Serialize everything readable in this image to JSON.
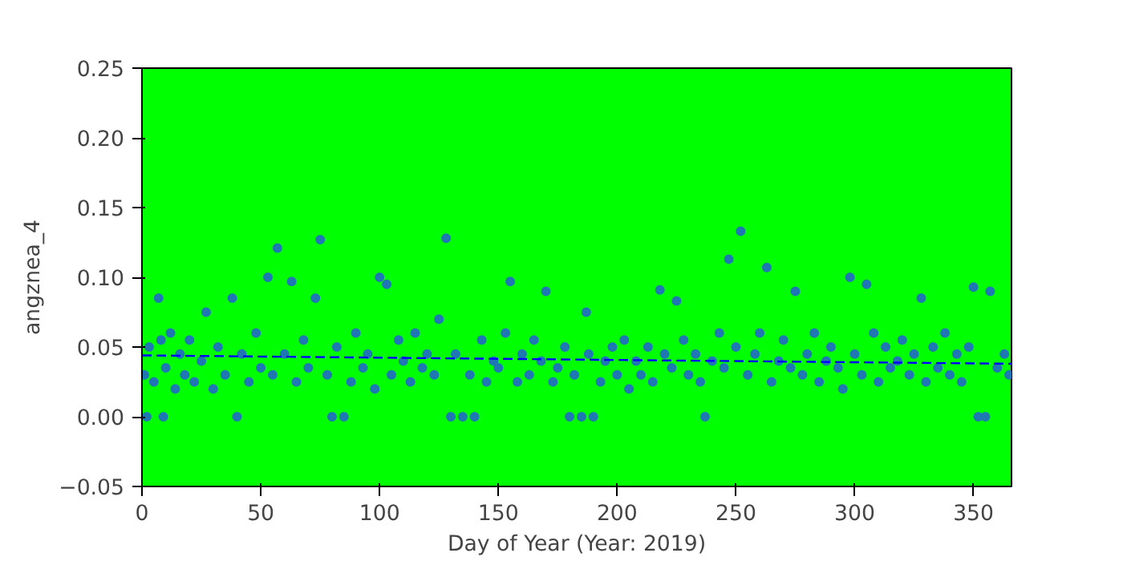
{
  "chart_data": {
    "type": "scatter",
    "xlabel": "Day of Year (Year: 2019)",
    "ylabel": "angznea_4",
    "xlim": [
      0,
      366
    ],
    "ylim": [
      -0.05,
      0.25
    ],
    "xticks": [
      0,
      50,
      100,
      150,
      200,
      250,
      300,
      350
    ],
    "yticks": [
      {
        "value": -0.05,
        "label": "−0.05"
      },
      {
        "value": 0.0,
        "label": "0.00"
      },
      {
        "value": 0.05,
        "label": "0.05"
      },
      {
        "value": 0.1,
        "label": "0.10"
      },
      {
        "value": 0.15,
        "label": "0.15"
      },
      {
        "value": 0.2,
        "label": "0.20"
      },
      {
        "value": 0.25,
        "label": "0.25"
      }
    ],
    "grid": false,
    "series": [
      {
        "marker": "circle",
        "color": "#1f77b4",
        "x": [
          1,
          2,
          3,
          5,
          7,
          8,
          9,
          10,
          12,
          14,
          16,
          18,
          20,
          22,
          25,
          27,
          30,
          32,
          35,
          38,
          40,
          42,
          45,
          48,
          50,
          53,
          55,
          57,
          60,
          63,
          65,
          68,
          70,
          73,
          75,
          78,
          80,
          82,
          85,
          88,
          90,
          93,
          95,
          98,
          100,
          103,
          105,
          108,
          110,
          113,
          115,
          118,
          120,
          123,
          125,
          128,
          130,
          132,
          135,
          138,
          140,
          143,
          145,
          148,
          150,
          153,
          155,
          158,
          160,
          163,
          165,
          168,
          170,
          173,
          175,
          178,
          180,
          182,
          185,
          187,
          188,
          190,
          193,
          195,
          198,
          200,
          203,
          205,
          208,
          210,
          213,
          215,
          218,
          220,
          223,
          225,
          228,
          230,
          233,
          235,
          237,
          240,
          243,
          245,
          247,
          250,
          252,
          255,
          258,
          260,
          263,
          265,
          268,
          270,
          273,
          275,
          278,
          280,
          283,
          285,
          288,
          290,
          293,
          295,
          298,
          300,
          303,
          305,
          308,
          310,
          313,
          315,
          318,
          320,
          323,
          325,
          328,
          330,
          333,
          335,
          338,
          340,
          343,
          345,
          348,
          350,
          352,
          355,
          357,
          360,
          363,
          365
        ],
        "values": [
          0.03,
          0.0,
          0.05,
          0.025,
          0.085,
          0.055,
          0.0,
          0.035,
          0.06,
          0.02,
          0.045,
          0.03,
          0.055,
          0.025,
          0.04,
          0.075,
          0.02,
          0.05,
          0.03,
          0.085,
          0.0,
          0.045,
          0.025,
          0.06,
          0.035,
          0.1,
          0.03,
          0.121,
          0.045,
          0.097,
          0.025,
          0.055,
          0.035,
          0.085,
          0.127,
          0.03,
          0.0,
          0.05,
          0.0,
          0.025,
          0.06,
          0.035,
          0.045,
          0.02,
          0.1,
          0.095,
          0.03,
          0.055,
          0.04,
          0.025,
          0.06,
          0.035,
          0.045,
          0.03,
          0.07,
          0.128,
          0.0,
          0.045,
          0.0,
          0.03,
          0.0,
          0.055,
          0.025,
          0.04,
          0.035,
          0.06,
          0.097,
          0.025,
          0.045,
          0.03,
          0.055,
          0.04,
          0.09,
          0.025,
          0.035,
          0.05,
          0.0,
          0.03,
          0.0,
          0.075,
          0.045,
          0.0,
          0.025,
          0.04,
          0.05,
          0.03,
          0.055,
          0.02,
          0.04,
          0.03,
          0.05,
          0.025,
          0.091,
          0.045,
          0.035,
          0.083,
          0.055,
          0.03,
          0.045,
          0.025,
          0.0,
          0.04,
          0.06,
          0.035,
          0.113,
          0.05,
          0.133,
          0.03,
          0.045,
          0.06,
          0.107,
          0.025,
          0.04,
          0.055,
          0.035,
          0.09,
          0.03,
          0.045,
          0.06,
          0.025,
          0.04,
          0.05,
          0.035,
          0.02,
          0.1,
          0.045,
          0.03,
          0.095,
          0.06,
          0.025,
          0.05,
          0.035,
          0.04,
          0.055,
          0.03,
          0.045,
          0.085,
          0.025,
          0.05,
          0.035,
          0.06,
          0.03,
          0.045,
          0.025,
          0.05,
          0.093,
          0.0,
          0.0,
          0.09,
          0.035,
          0.045,
          0.03
        ]
      },
      {
        "type": "line",
        "line_style": "dashed",
        "color": "#0000ff",
        "x": [
          0,
          366
        ],
        "values": [
          0.044,
          0.038
        ]
      }
    ]
  }
}
